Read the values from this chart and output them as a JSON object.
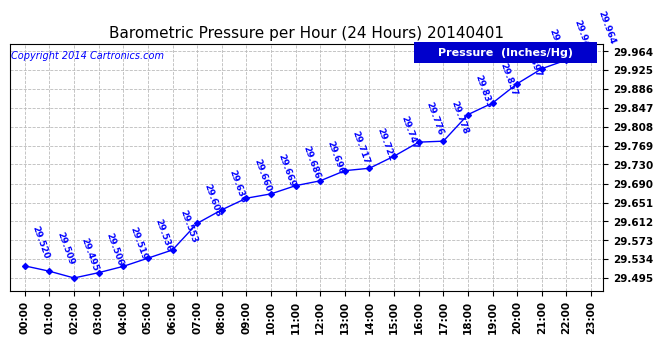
{
  "title": "Barometric Pressure per Hour (24 Hours) 20140401",
  "copyright": "Copyright 2014 Cartronics.com",
  "legend_label": "Pressure  (Inches/Hg)",
  "hours": [
    0,
    1,
    2,
    3,
    4,
    5,
    6,
    7,
    8,
    9,
    10,
    11,
    12,
    13,
    14,
    15,
    16,
    17,
    18,
    19,
    20,
    21,
    22,
    23
  ],
  "x_labels": [
    "00:00",
    "01:00",
    "02:00",
    "03:00",
    "04:00",
    "05:00",
    "06:00",
    "07:00",
    "08:00",
    "09:00",
    "10:00",
    "11:00",
    "12:00",
    "13:00",
    "14:00",
    "15:00",
    "16:00",
    "17:00",
    "18:00",
    "19:00",
    "20:00",
    "21:00",
    "22:00",
    "23:00"
  ],
  "pressure": [
    29.52,
    29.509,
    29.495,
    29.506,
    29.519,
    29.536,
    29.553,
    29.608,
    29.636,
    29.66,
    29.669,
    29.686,
    29.696,
    29.717,
    29.722,
    29.747,
    29.776,
    29.778,
    29.833,
    29.857,
    29.897,
    29.928,
    29.946,
    29.964
  ],
  "line_color": "#0000ff",
  "marker_color": "#0000ff",
  "background_color": "#ffffff",
  "grid_color": "#bbbbbb",
  "title_color": "#000000",
  "annotation_color": "#0000ff",
  "y_ticks": [
    29.495,
    29.534,
    29.573,
    29.612,
    29.651,
    29.69,
    29.73,
    29.769,
    29.808,
    29.847,
    29.886,
    29.925,
    29.964
  ],
  "ylim": [
    29.468,
    29.98
  ],
  "xlim": [
    -0.6,
    23.5
  ],
  "legend_bg": "#0000cc",
  "legend_text_color": "#ffffff",
  "copyright_color": "#0000ff",
  "title_fontsize": 11,
  "tick_fontsize": 7.5,
  "annot_fontsize": 6.5,
  "legend_fontsize": 8,
  "copyright_fontsize": 7
}
